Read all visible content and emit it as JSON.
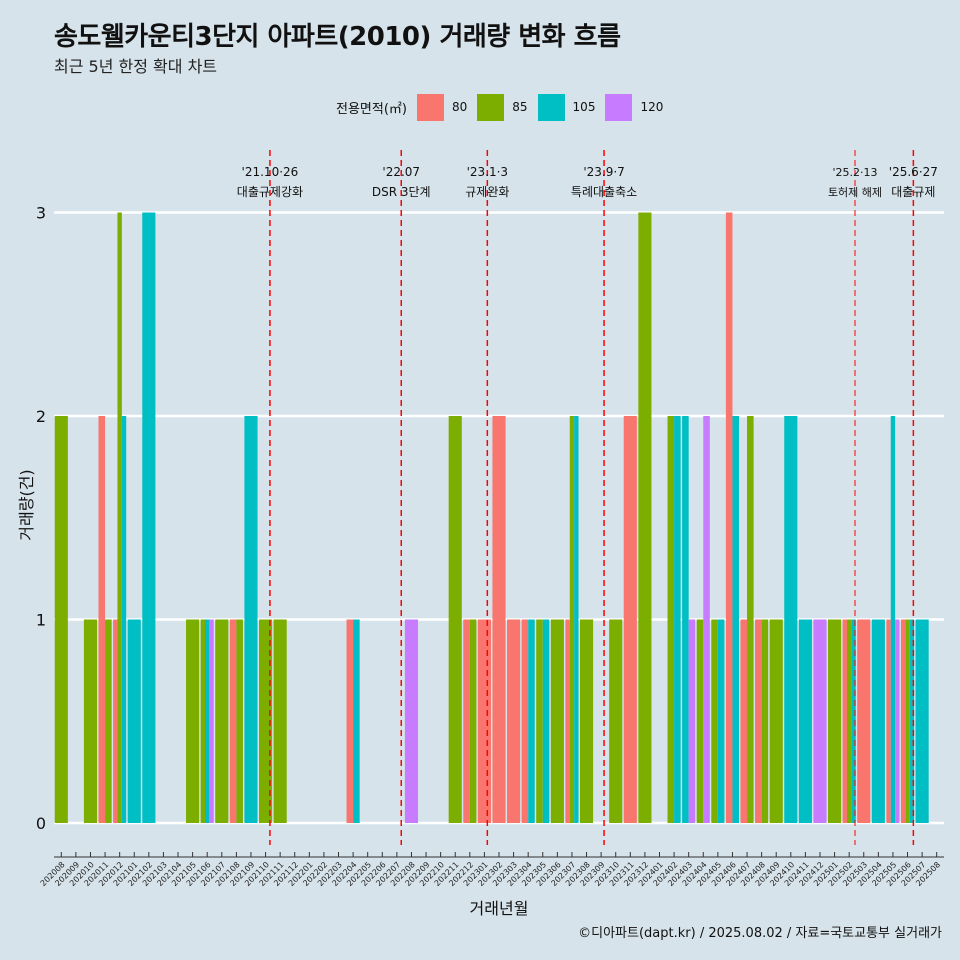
{
  "header": {
    "title": "송도웰카운티3단지 아파트(2010) 거래량 변화 흐름",
    "subtitle": "최근 5년 한정 확대 차트"
  },
  "legend": {
    "title": "전용면적(㎡)",
    "items": [
      {
        "label": "80",
        "color": "#f8766d"
      },
      {
        "label": "85",
        "color": "#7cae00"
      },
      {
        "label": "105",
        "color": "#00bfc4"
      },
      {
        "label": "120",
        "color": "#c77cff"
      }
    ]
  },
  "caption": "©디아파트(dapt.kr) / 2025.08.02 / 자료=국토교통부 실거래가",
  "chart_data": {
    "type": "bar",
    "xlabel": "거래년월",
    "ylabel": "거래량(건)",
    "ylim": [
      0,
      3
    ],
    "yticks": [
      0,
      1,
      2,
      3
    ],
    "grid": true,
    "legend_position": "top",
    "bar_mode": "dodge",
    "categories": [
      "202008",
      "202009",
      "202010",
      "202011",
      "202012",
      "202101",
      "202102",
      "202103",
      "202104",
      "202105",
      "202106",
      "202107",
      "202108",
      "202109",
      "202110",
      "202111",
      "202112",
      "202201",
      "202202",
      "202203",
      "202204",
      "202205",
      "202206",
      "202207",
      "202208",
      "202209",
      "202210",
      "202211",
      "202212",
      "202301",
      "202302",
      "202303",
      "202304",
      "202305",
      "202306",
      "202307",
      "202308",
      "202309",
      "202310",
      "202311",
      "202312",
      "202401",
      "202402",
      "202403",
      "202404",
      "202405",
      "202406",
      "202407",
      "202408",
      "202409",
      "202410",
      "202411",
      "202412",
      "202501",
      "202502",
      "202503",
      "202504",
      "202505",
      "202506",
      "202507",
      "202508"
    ],
    "series": [
      {
        "name": "80",
        "color": "#f8766d",
        "values": [
          0,
          0,
          0,
          2,
          1,
          0,
          0,
          0,
          0,
          0,
          0,
          0,
          1,
          0,
          0,
          0,
          0,
          0,
          0,
          0,
          1,
          0,
          0,
          0,
          0,
          0,
          0,
          0,
          1,
          1,
          2,
          1,
          1,
          0,
          0,
          1,
          0,
          0,
          0,
          2,
          0,
          0,
          0,
          0,
          0,
          0,
          3,
          1,
          1,
          0,
          0,
          0,
          0,
          0,
          1,
          1,
          0,
          1,
          1,
          0,
          0
        ]
      },
      {
        "name": "85",
        "color": "#7cae00",
        "values": [
          2,
          0,
          1,
          1,
          3,
          0,
          0,
          0,
          0,
          1,
          1,
          1,
          1,
          0,
          1,
          1,
          0,
          0,
          0,
          0,
          0,
          0,
          0,
          0,
          0,
          0,
          0,
          2,
          1,
          0,
          0,
          0,
          0,
          1,
          1,
          2,
          1,
          0,
          1,
          0,
          3,
          0,
          2,
          0,
          1,
          1,
          0,
          2,
          1,
          1,
          0,
          0,
          0,
          1,
          1,
          0,
          0,
          0,
          1,
          0,
          0
        ]
      },
      {
        "name": "105",
        "color": "#00bfc4",
        "values": [
          0,
          0,
          0,
          0,
          2,
          1,
          3,
          0,
          0,
          0,
          1,
          0,
          0,
          2,
          0,
          0,
          0,
          0,
          0,
          0,
          1,
          0,
          0,
          0,
          0,
          0,
          0,
          0,
          0,
          0,
          0,
          0,
          1,
          1,
          0,
          2,
          0,
          0,
          0,
          0,
          0,
          0,
          2,
          2,
          0,
          1,
          2,
          0,
          0,
          0,
          2,
          1,
          0,
          0,
          1,
          0,
          1,
          2,
          1,
          1,
          0
        ]
      },
      {
        "name": "120",
        "color": "#c77cff",
        "values": [
          0,
          0,
          0,
          0,
          0,
          0,
          0,
          0,
          0,
          0,
          1,
          0,
          0,
          0,
          0,
          0,
          0,
          0,
          0,
          0,
          0,
          0,
          0,
          0,
          1,
          0,
          0,
          0,
          0,
          0,
          0,
          0,
          0,
          0,
          0,
          0,
          0,
          0,
          0,
          0,
          0,
          0,
          0,
          1,
          2,
          0,
          0,
          0,
          0,
          0,
          0,
          0,
          1,
          0,
          0,
          0,
          0,
          1,
          0,
          0,
          0
        ]
      }
    ],
    "annotations": [
      {
        "x": 14.3,
        "date": "'21.10·26",
        "text": "대출규제강화"
      },
      {
        "x": 23.3,
        "date": "'22.07",
        "text": "DSR 3단계"
      },
      {
        "x": 29.2,
        "date": "'23.1·3",
        "text": "규제완화"
      },
      {
        "x": 37.2,
        "date": "'23.9·7",
        "text": "특례대출축소"
      },
      {
        "x": 54.4,
        "date": "'25.2·13",
        "text": "토허제 해제"
      },
      {
        "x": 58.4,
        "date": "'25.6·27",
        "text": "대출규제"
      }
    ]
  }
}
